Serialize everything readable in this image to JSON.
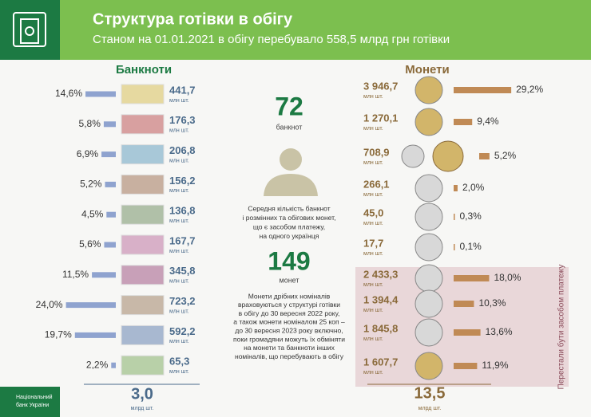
{
  "header": {
    "title": "Структура готівки в обігу",
    "subtitle": "Станом на 01.01.2021 в обігу перебувало 558,5 млрд грн готівки"
  },
  "banknotes": {
    "title": "Банкноти",
    "unit": "млн шт.",
    "items": [
      {
        "share": {
          "value": 14.6,
          "label": "14,6%"
        },
        "count": "441,7"
      },
      {
        "share": {
          "value": 5.8,
          "label": "5,8%"
        },
        "count": "176,3"
      },
      {
        "share": {
          "value": 6.9,
          "label": "6,9%"
        },
        "count": "206,8"
      },
      {
        "share": {
          "value": 5.2,
          "label": "5,2%"
        },
        "count": "156,2"
      },
      {
        "share": {
          "value": 4.5,
          "label": "4,5%"
        },
        "count": "136,8"
      },
      {
        "share": {
          "value": 5.6,
          "label": "5,6%"
        },
        "count": "167,7"
      },
      {
        "share": {
          "value": 11.5,
          "label": "11,5%"
        },
        "count": "345,8"
      },
      {
        "share": {
          "value": 24.0,
          "label": "24,0%"
        },
        "count": "723,2"
      },
      {
        "share": {
          "value": 19.7,
          "label": "19,7%"
        },
        "count": "592,2"
      },
      {
        "share": {
          "value": 2.2,
          "label": "2,2%"
        },
        "count": "65,3"
      }
    ],
    "total": "3,0",
    "total_unit": "млрд шт."
  },
  "coins": {
    "title": "Монети",
    "unit": "млн шт.",
    "withdrawn_note": "Перестали бути засобом платежу",
    "items": [
      {
        "share": {
          "value": 29.2,
          "label": "29,2%"
        },
        "count": "3 946,7"
      },
      {
        "share": {
          "value": 9.4,
          "label": "9,4%"
        },
        "count": "1 270,1"
      },
      {
        "share": {
          "value": 5.2,
          "label": "5,2%"
        },
        "count": "708,9"
      },
      {
        "share": {
          "value": 2.0,
          "label": "2,0%"
        },
        "count": "266,1"
      },
      {
        "share": {
          "value": 0.3,
          "label": "0,3%"
        },
        "count": "45,0"
      },
      {
        "share": {
          "value": 0.1,
          "label": "0,1%"
        },
        "count": "17,7"
      },
      {
        "share": {
          "value": 18.0,
          "label": "18,0%"
        },
        "count": "2 433,3"
      },
      {
        "share": {
          "value": 10.3,
          "label": "10,3%"
        },
        "count": "1 394,4"
      },
      {
        "share": {
          "value": 13.6,
          "label": "13,6%"
        },
        "count": "1 845,8"
      },
      {
        "share": {
          "value": 11.9,
          "label": "11,9%"
        },
        "count": "1 607,7"
      }
    ],
    "total": "13,5",
    "total_unit": "млрд шт."
  },
  "center": {
    "banknotes_per_person": "72",
    "banknotes_word": "банкнот",
    "description": [
      "Середня кількість банкнот",
      "і розмінних та обігових монет,",
      "що є засобом платежу,",
      "на одного українця"
    ],
    "coins_per_person": "149",
    "coins_word": "монет",
    "note": [
      "Монети дрібних номіналів",
      "враховуються у структурі готівки",
      "в обігу до 30 вересня 2022 року,",
      "а також монети  номіналом 25 коп –",
      "до 30 вересня 2023 року включно,",
      "поки громадяни можуть їх обміняти",
      "на монети та банкноти інших",
      "номіналів, що перебувають в обігу"
    ]
  },
  "logo": [
    "Національний",
    "банк України"
  ]
}
